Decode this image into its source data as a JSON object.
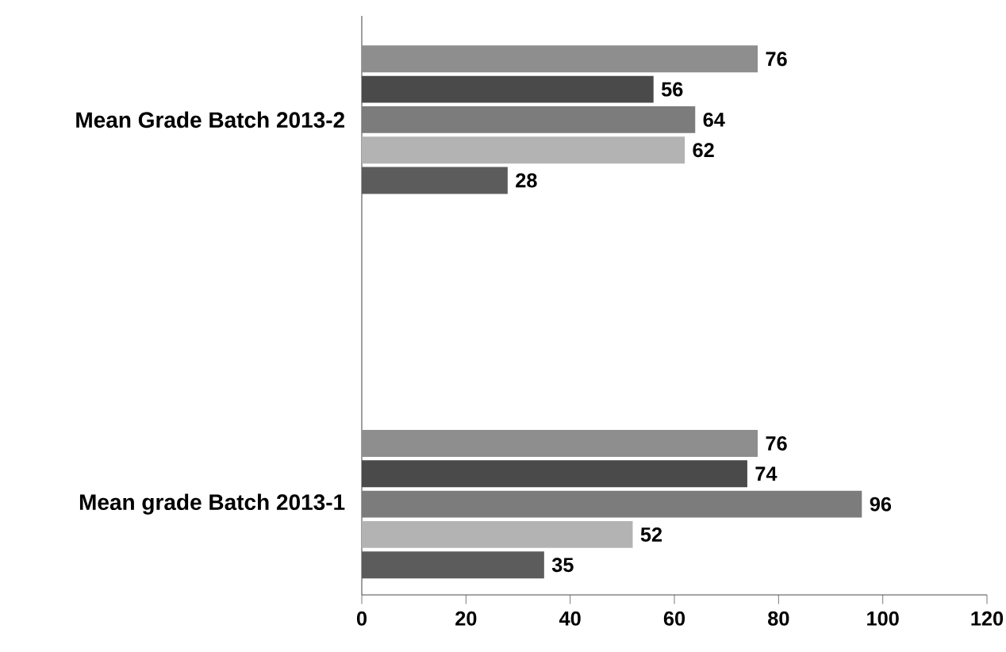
{
  "chart_data": {
    "type": "bar",
    "orientation": "horizontal",
    "categories": [
      "Mean Grade Batch 2013-2",
      "Mean grade Batch 2013-1"
    ],
    "series": [
      {
        "color": "#8e8e8e",
        "values": [
          76,
          76
        ]
      },
      {
        "color": "#4a4a4a",
        "values": [
          56,
          74
        ]
      },
      {
        "color": "#7c7c7c",
        "values": [
          64,
          96
        ]
      },
      {
        "color": "#b3b3b3",
        "values": [
          62,
          52
        ]
      },
      {
        "color": "#5c5c5c",
        "values": [
          28,
          35
        ]
      }
    ],
    "xlim": [
      0,
      120
    ],
    "xticks": [
      0,
      20,
      40,
      60,
      80,
      100,
      120
    ],
    "data_labels": true
  }
}
